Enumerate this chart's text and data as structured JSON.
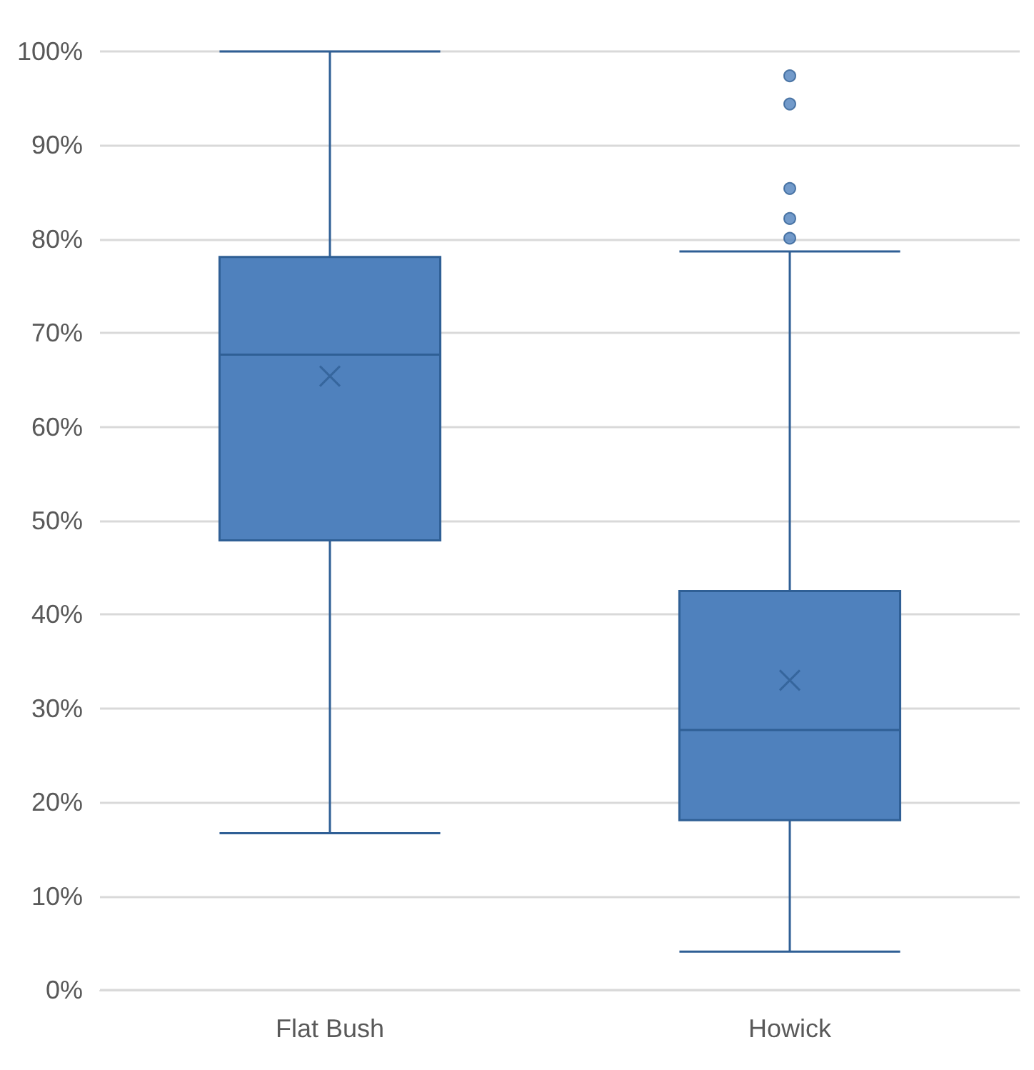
{
  "chart_data": {
    "type": "box",
    "categories": [
      "Flat Bush",
      "Howick"
    ],
    "series": [
      {
        "color": "#4f81bd",
        "boxes": [
          {
            "low": 16.7,
            "q1": 47.9,
            "median": 67.7,
            "q3": 78.1,
            "high": 100,
            "mean": 65.4
          },
          {
            "low": 4.1,
            "q1": 18.1,
            "median": 27.7,
            "q3": 42.5,
            "high": 78.7,
            "mean": 33.0,
            "outliers": [
              80.1,
              82.2,
              85.4,
              94.4,
              97.4
            ]
          }
        ]
      }
    ],
    "ylim": [
      0,
      100
    ],
    "yticks": [
      {
        "value": 0,
        "label": "0%"
      },
      {
        "value": 10,
        "label": "10%"
      },
      {
        "value": 20,
        "label": "20%"
      },
      {
        "value": 30,
        "label": "30%"
      },
      {
        "value": 40,
        "label": "40%"
      },
      {
        "value": 50,
        "label": "50%"
      },
      {
        "value": 60,
        "label": "60%"
      },
      {
        "value": 70,
        "label": "70%"
      },
      {
        "value": 80,
        "label": "80%"
      },
      {
        "value": 90,
        "label": "90%"
      },
      {
        "value": 100,
        "label": "100%"
      }
    ],
    "grid": "y"
  }
}
